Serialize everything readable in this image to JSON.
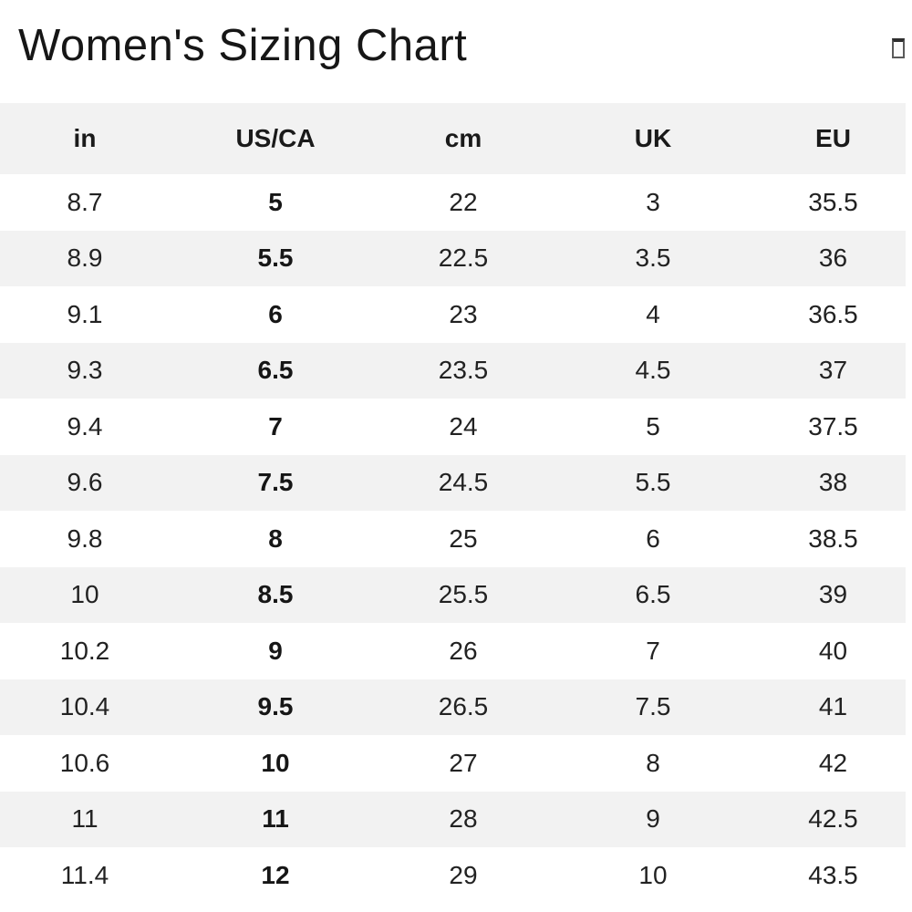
{
  "header": {
    "title": "Women's Sizing Chart",
    "icon": "unknown-glyph"
  },
  "table": {
    "columns": [
      "in",
      "US/CA",
      "cm",
      "UK",
      "EU"
    ],
    "bold_column_index": 1,
    "rows": [
      [
        "8.7",
        "5",
        "22",
        "3",
        "35.5"
      ],
      [
        "8.9",
        "5.5",
        "22.5",
        "3.5",
        "36"
      ],
      [
        "9.1",
        "6",
        "23",
        "4",
        "36.5"
      ],
      [
        "9.3",
        "6.5",
        "23.5",
        "4.5",
        "37"
      ],
      [
        "9.4",
        "7",
        "24",
        "5",
        "37.5"
      ],
      [
        "9.6",
        "7.5",
        "24.5",
        "5.5",
        "38"
      ],
      [
        "9.8",
        "8",
        "25",
        "6",
        "38.5"
      ],
      [
        "10",
        "8.5",
        "25.5",
        "6.5",
        "39"
      ],
      [
        "10.2",
        "9",
        "26",
        "7",
        "40"
      ],
      [
        "10.4",
        "9.5",
        "26.5",
        "7.5",
        "41"
      ],
      [
        "10.6",
        "10",
        "27",
        "8",
        "42"
      ],
      [
        "11",
        "11",
        "28",
        "9",
        "42.5"
      ],
      [
        "11.4",
        "12",
        "29",
        "10",
        "43.5"
      ]
    ]
  },
  "colors": {
    "stripe": "#f2f2f2",
    "header_bg": "#f2f2f2",
    "text": "#1f1f1f"
  }
}
